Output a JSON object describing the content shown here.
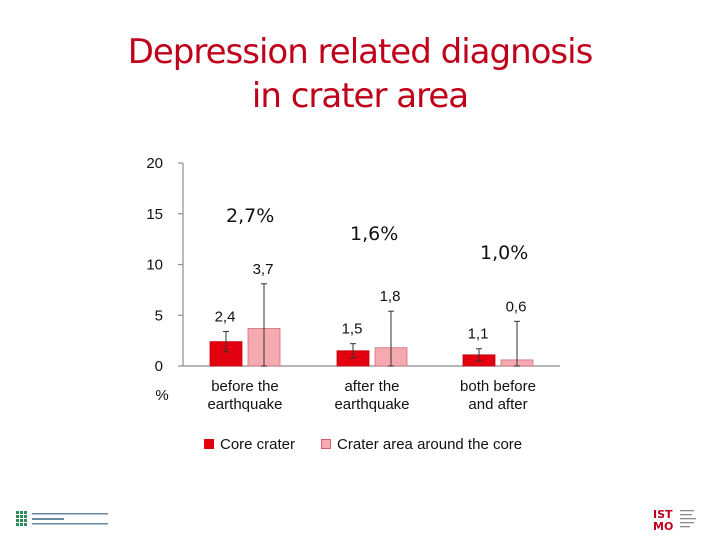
{
  "slide": {
    "title_line1": "Depression related diagnosis",
    "title_line2": "in crater area"
  },
  "overall_rates": [
    "2,7%",
    "1,6%",
    "1,0%"
  ],
  "colors": {
    "title": "#c0001a",
    "core": "#e3000f",
    "crater": "#f4aaaf"
  },
  "chart_data": {
    "type": "bar",
    "categories": [
      "before the earthquake",
      "after the earthquake",
      "both before and after"
    ],
    "category_label_lines": [
      [
        "before the",
        "earthquake"
      ],
      [
        "after the",
        "earthquake"
      ],
      [
        "both before",
        "and after"
      ]
    ],
    "series": [
      {
        "name": "Core crater",
        "values": [
          2.4,
          1.5,
          1.1
        ],
        "error_plus": [
          1.0,
          0.7,
          0.6
        ],
        "error_minus": [
          1.0,
          0.7,
          0.6
        ],
        "color": "#e3000f"
      },
      {
        "name": "Crater area around the core",
        "values": [
          3.7,
          1.8,
          0.6
        ],
        "error_plus": [
          4.4,
          3.6,
          3.8
        ],
        "error_minus": [
          3.7,
          1.8,
          0.6
        ],
        "color": "#f4aaaf"
      }
    ],
    "value_labels": [
      [
        "2,4",
        "1,5",
        "1,1"
      ],
      [
        "3,7",
        "1,8",
        "0,6"
      ]
    ],
    "ylabel": "%",
    "ylim": [
      0,
      20
    ],
    "yticks": [
      0,
      5,
      10,
      15,
      20
    ],
    "grid": false,
    "legend_position": "bottom"
  },
  "logos": {
    "left_caption": "",
    "right_caption": "IST MO"
  }
}
